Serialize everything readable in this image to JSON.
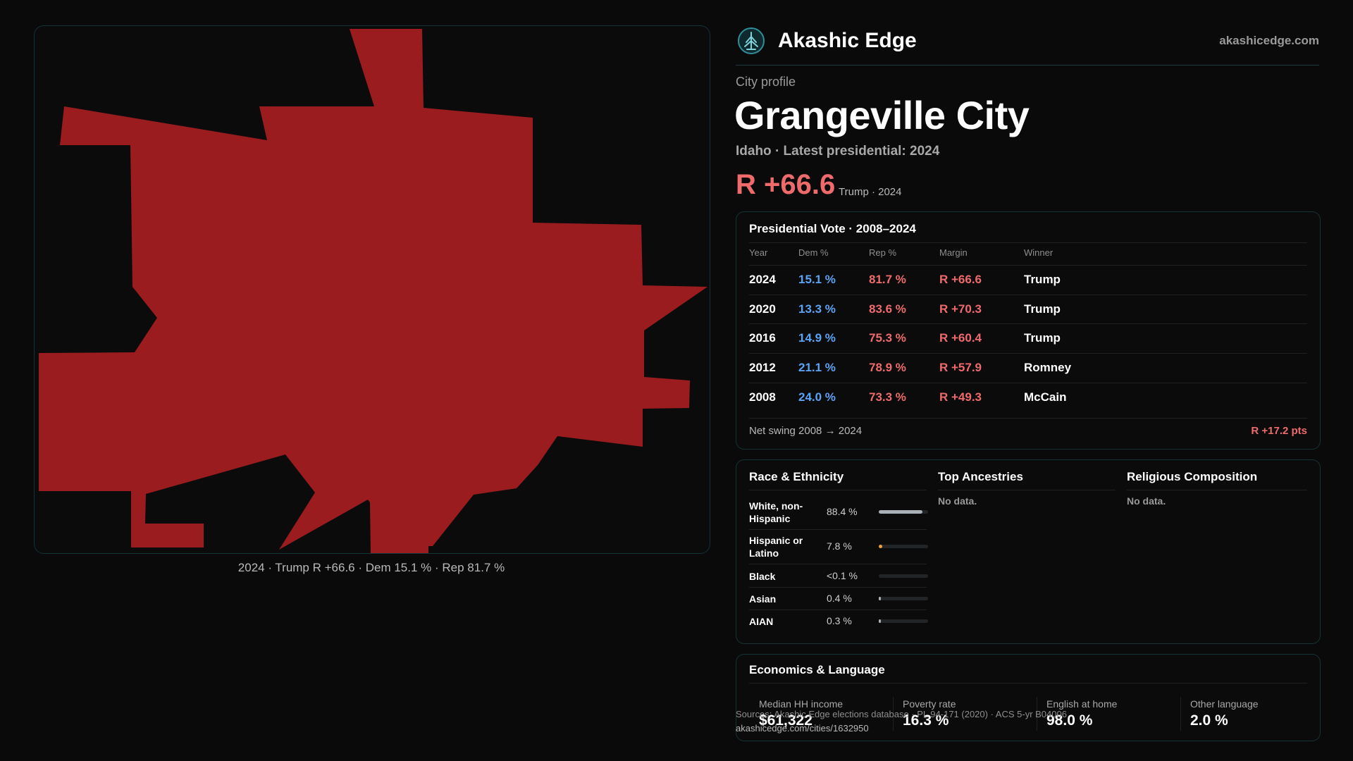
{
  "map": {
    "fill_color": "#9b1c1f",
    "caption": "2024 · Trump R +66.6 · Dem 15.1 % · Rep 81.7 %"
  },
  "header": {
    "brand": "Akashic Edge",
    "logo_icon": "tree-icon",
    "site_url": "akashicedge.com"
  },
  "profile": {
    "kicker": "City profile",
    "title": "Grangeville City",
    "subtitle": "Idaho · Latest presidential: 2024",
    "headline_margin": "R +66.6",
    "headline_note": "Trump · 2024"
  },
  "vote_table": {
    "title": "Presidential Vote · 2008–2024",
    "headers": {
      "year": "Year",
      "dem": "Dem %",
      "rep": "Rep %",
      "margin": "Margin",
      "winner": "Winner"
    },
    "rows": [
      {
        "year": "2024",
        "dem": "15.1 %",
        "rep": "81.7 %",
        "margin": "R +66.6",
        "winner": "Trump"
      },
      {
        "year": "2020",
        "dem": "13.3 %",
        "rep": "83.6 %",
        "margin": "R +70.3",
        "winner": "Trump"
      },
      {
        "year": "2016",
        "dem": "14.9 %",
        "rep": "75.3 %",
        "margin": "R +60.4",
        "winner": "Trump"
      },
      {
        "year": "2012",
        "dem": "21.1 %",
        "rep": "78.9 %",
        "margin": "R +57.9",
        "winner": "Romney"
      },
      {
        "year": "2008",
        "dem": "24.0 %",
        "rep": "73.3 %",
        "margin": "R +49.3",
        "winner": "McCain"
      }
    ],
    "swing_label": "Net swing 2008 → 2024",
    "swing_value": "R +17.2 pts"
  },
  "race": {
    "title": "Race & Ethnicity",
    "rows": [
      {
        "name": "White, non-Hispanic",
        "value": "88.4 %",
        "share": 0.884,
        "color": "#a9b0b8"
      },
      {
        "name": "Hispanic or Latino",
        "value": "7.8 %",
        "share": 0.078,
        "color": "#f0a030"
      },
      {
        "name": "Black",
        "value": "<0.1 %",
        "share": 0.0,
        "color": "#a9b0b8"
      },
      {
        "name": "Asian",
        "value": "0.4 %",
        "share": 0.004,
        "color": "#a9b0b8"
      },
      {
        "name": "AIAN",
        "value": "0.3 %",
        "share": 0.003,
        "color": "#a9b0b8"
      }
    ]
  },
  "ancestries": {
    "title": "Top Ancestries",
    "empty": "No data."
  },
  "religion": {
    "title": "Religious Composition",
    "empty": "No data."
  },
  "economics": {
    "title": "Economics & Language",
    "items": [
      {
        "label": "Median HH income",
        "value": "$61,322"
      },
      {
        "label": "Poverty rate",
        "value": "16.3 %"
      },
      {
        "label": "English at home",
        "value": "98.0 %"
      },
      {
        "label": "Other language",
        "value": "2.0 %"
      }
    ]
  },
  "footer": {
    "source": "Sources: Akashic Edge elections database · PL 94-171 (2020) · ACS 5-yr B04006",
    "link": "akashicedge.com/cities/1632950"
  }
}
